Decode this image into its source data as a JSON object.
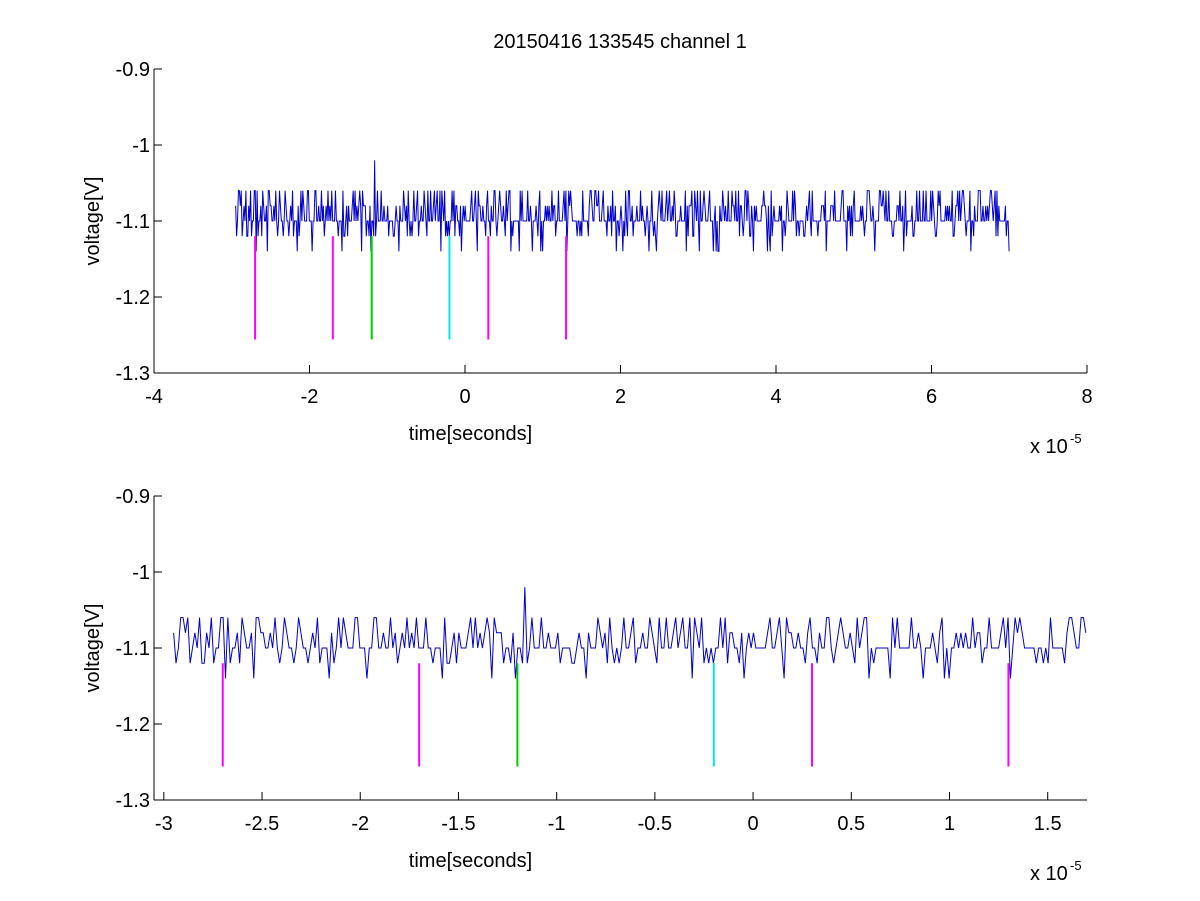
{
  "figure": {
    "title": "20150416 133545 channel 1"
  },
  "chart_data": [
    {
      "type": "line",
      "xlabel": "time[seconds]",
      "ylabel": "voltage[V]",
      "x_exponent": "x 10",
      "x_exponent_power": "-5",
      "xlim": [
        -4,
        8
      ],
      "ylim": [
        -1.3,
        -0.9
      ],
      "x_ticks": [
        -4,
        -2,
        0,
        2,
        4,
        6,
        8
      ],
      "x_tick_labels": [
        "-4",
        "-2",
        "0",
        "2",
        "4",
        "6",
        "8"
      ],
      "y_ticks": [
        -1.3,
        -1.2,
        -1.1,
        -1.0,
        -0.9
      ],
      "y_tick_labels": [
        "-1.3",
        "-1.2",
        "-1.1",
        "-1",
        "-0.9"
      ],
      "grid": false,
      "signal": {
        "color": "#0000cc",
        "x_start": -2.95,
        "x_end": 7.0,
        "baseline": -1.1,
        "levels": [
          -1.14,
          -1.12,
          -1.1,
          -1.08,
          -1.06
        ],
        "spike": {
          "x": -1.16,
          "y": -1.02
        }
      },
      "markers": [
        {
          "x": -2.7,
          "y_top": -1.12,
          "y_bottom": -1.256,
          "color": "#ff00ff"
        },
        {
          "x": -1.7,
          "y_top": -1.12,
          "y_bottom": -1.256,
          "color": "#ff00ff"
        },
        {
          "x": -1.2,
          "y_top": -1.12,
          "y_bottom": -1.256,
          "color": "#00cc00"
        },
        {
          "x": -0.2,
          "y_top": -1.12,
          "y_bottom": -1.256,
          "color": "#00e5ee"
        },
        {
          "x": 0.3,
          "y_top": -1.12,
          "y_bottom": -1.256,
          "color": "#ff00ff"
        },
        {
          "x": 1.3,
          "y_top": -1.12,
          "y_bottom": -1.256,
          "color": "#ff00ff"
        }
      ]
    },
    {
      "type": "line",
      "xlabel": "time[seconds]",
      "ylabel": "voltage[V]",
      "x_exponent": "x 10",
      "x_exponent_power": "-5",
      "xlim": [
        -3.05,
        1.7
      ],
      "ylim": [
        -1.3,
        -0.9
      ],
      "x_ticks": [
        -3,
        -2.5,
        -2,
        -1.5,
        -1,
        -0.5,
        0,
        0.5,
        1,
        1.5
      ],
      "x_tick_labels": [
        "-3",
        "-2.5",
        "-2",
        "-1.5",
        "-1",
        "-0.5",
        "0",
        "0.5",
        "1",
        "1.5"
      ],
      "y_ticks": [
        -1.3,
        -1.2,
        -1.1,
        -1.0,
        -0.9
      ],
      "y_tick_labels": [
        "-1.3",
        "-1.2",
        "-1.1",
        "-1",
        "-0.9"
      ],
      "grid": false,
      "signal": {
        "color": "#0000cc",
        "x_start": -2.95,
        "x_end": 1.7,
        "baseline": -1.1,
        "levels": [
          -1.14,
          -1.12,
          -1.1,
          -1.08,
          -1.06
        ],
        "spike": {
          "x": -1.16,
          "y": -1.02
        }
      },
      "markers": [
        {
          "x": -2.7,
          "y_top": -1.12,
          "y_bottom": -1.256,
          "color": "#ff00ff"
        },
        {
          "x": -1.7,
          "y_top": -1.12,
          "y_bottom": -1.256,
          "color": "#ff00ff"
        },
        {
          "x": -1.2,
          "y_top": -1.12,
          "y_bottom": -1.256,
          "color": "#00cc00"
        },
        {
          "x": -0.2,
          "y_top": -1.12,
          "y_bottom": -1.256,
          "color": "#00e5ee"
        },
        {
          "x": 0.3,
          "y_top": -1.12,
          "y_bottom": -1.256,
          "color": "#ff00ff"
        },
        {
          "x": 1.3,
          "y_top": -1.12,
          "y_bottom": -1.256,
          "color": "#ff00ff"
        }
      ]
    }
  ]
}
